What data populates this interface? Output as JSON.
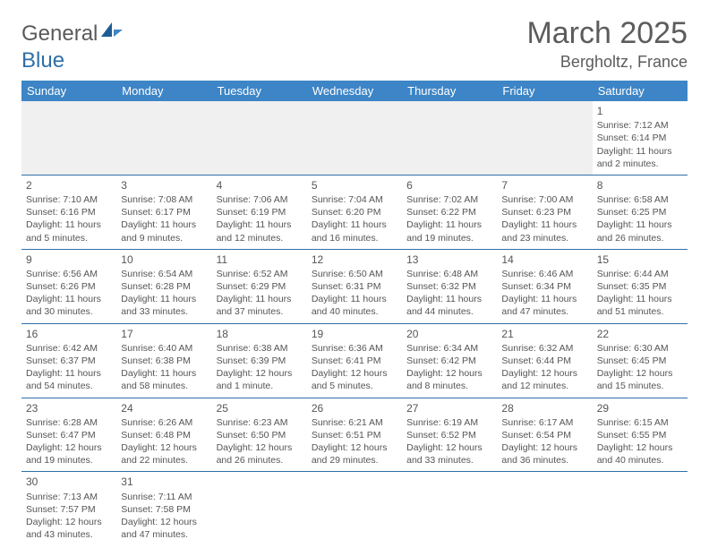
{
  "logo": {
    "part1": "General",
    "part2": "Blue"
  },
  "title": "March 2025",
  "location": "Bergholtz, France",
  "weekdays": [
    "Sunday",
    "Monday",
    "Tuesday",
    "Wednesday",
    "Thursday",
    "Friday",
    "Saturday"
  ],
  "colors": {
    "header_bg": "#3d85c6",
    "header_text": "#ffffff",
    "border": "#2f6fa8",
    "text": "#555555",
    "empty_bg": "#f0f0f0"
  },
  "days": {
    "1": {
      "sunrise": "7:12 AM",
      "sunset": "6:14 PM",
      "daylight": "11 hours and 2 minutes."
    },
    "2": {
      "sunrise": "7:10 AM",
      "sunset": "6:16 PM",
      "daylight": "11 hours and 5 minutes."
    },
    "3": {
      "sunrise": "7:08 AM",
      "sunset": "6:17 PM",
      "daylight": "11 hours and 9 minutes."
    },
    "4": {
      "sunrise": "7:06 AM",
      "sunset": "6:19 PM",
      "daylight": "11 hours and 12 minutes."
    },
    "5": {
      "sunrise": "7:04 AM",
      "sunset": "6:20 PM",
      "daylight": "11 hours and 16 minutes."
    },
    "6": {
      "sunrise": "7:02 AM",
      "sunset": "6:22 PM",
      "daylight": "11 hours and 19 minutes."
    },
    "7": {
      "sunrise": "7:00 AM",
      "sunset": "6:23 PM",
      "daylight": "11 hours and 23 minutes."
    },
    "8": {
      "sunrise": "6:58 AM",
      "sunset": "6:25 PM",
      "daylight": "11 hours and 26 minutes."
    },
    "9": {
      "sunrise": "6:56 AM",
      "sunset": "6:26 PM",
      "daylight": "11 hours and 30 minutes."
    },
    "10": {
      "sunrise": "6:54 AM",
      "sunset": "6:28 PM",
      "daylight": "11 hours and 33 minutes."
    },
    "11": {
      "sunrise": "6:52 AM",
      "sunset": "6:29 PM",
      "daylight": "11 hours and 37 minutes."
    },
    "12": {
      "sunrise": "6:50 AM",
      "sunset": "6:31 PM",
      "daylight": "11 hours and 40 minutes."
    },
    "13": {
      "sunrise": "6:48 AM",
      "sunset": "6:32 PM",
      "daylight": "11 hours and 44 minutes."
    },
    "14": {
      "sunrise": "6:46 AM",
      "sunset": "6:34 PM",
      "daylight": "11 hours and 47 minutes."
    },
    "15": {
      "sunrise": "6:44 AM",
      "sunset": "6:35 PM",
      "daylight": "11 hours and 51 minutes."
    },
    "16": {
      "sunrise": "6:42 AM",
      "sunset": "6:37 PM",
      "daylight": "11 hours and 54 minutes."
    },
    "17": {
      "sunrise": "6:40 AM",
      "sunset": "6:38 PM",
      "daylight": "11 hours and 58 minutes."
    },
    "18": {
      "sunrise": "6:38 AM",
      "sunset": "6:39 PM",
      "daylight": "12 hours and 1 minute."
    },
    "19": {
      "sunrise": "6:36 AM",
      "sunset": "6:41 PM",
      "daylight": "12 hours and 5 minutes."
    },
    "20": {
      "sunrise": "6:34 AM",
      "sunset": "6:42 PM",
      "daylight": "12 hours and 8 minutes."
    },
    "21": {
      "sunrise": "6:32 AM",
      "sunset": "6:44 PM",
      "daylight": "12 hours and 12 minutes."
    },
    "22": {
      "sunrise": "6:30 AM",
      "sunset": "6:45 PM",
      "daylight": "12 hours and 15 minutes."
    },
    "23": {
      "sunrise": "6:28 AM",
      "sunset": "6:47 PM",
      "daylight": "12 hours and 19 minutes."
    },
    "24": {
      "sunrise": "6:26 AM",
      "sunset": "6:48 PM",
      "daylight": "12 hours and 22 minutes."
    },
    "25": {
      "sunrise": "6:23 AM",
      "sunset": "6:50 PM",
      "daylight": "12 hours and 26 minutes."
    },
    "26": {
      "sunrise": "6:21 AM",
      "sunset": "6:51 PM",
      "daylight": "12 hours and 29 minutes."
    },
    "27": {
      "sunrise": "6:19 AM",
      "sunset": "6:52 PM",
      "daylight": "12 hours and 33 minutes."
    },
    "28": {
      "sunrise": "6:17 AM",
      "sunset": "6:54 PM",
      "daylight": "12 hours and 36 minutes."
    },
    "29": {
      "sunrise": "6:15 AM",
      "sunset": "6:55 PM",
      "daylight": "12 hours and 40 minutes."
    },
    "30": {
      "sunrise": "7:13 AM",
      "sunset": "7:57 PM",
      "daylight": "12 hours and 43 minutes."
    },
    "31": {
      "sunrise": "7:11 AM",
      "sunset": "7:58 PM",
      "daylight": "12 hours and 47 minutes."
    }
  },
  "layout": [
    [
      null,
      null,
      null,
      null,
      null,
      null,
      "1"
    ],
    [
      "2",
      "3",
      "4",
      "5",
      "6",
      "7",
      "8"
    ],
    [
      "9",
      "10",
      "11",
      "12",
      "13",
      "14",
      "15"
    ],
    [
      "16",
      "17",
      "18",
      "19",
      "20",
      "21",
      "22"
    ],
    [
      "23",
      "24",
      "25",
      "26",
      "27",
      "28",
      "29"
    ],
    [
      "30",
      "31",
      null,
      null,
      null,
      null,
      null
    ]
  ],
  "labels": {
    "sunrise": "Sunrise: ",
    "sunset": "Sunset: ",
    "daylight": "Daylight: "
  }
}
